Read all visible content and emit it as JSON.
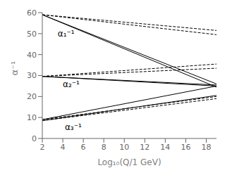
{
  "chart_data": {
    "type": "line",
    "xlabel": "Log₁₀(Q/1 GeV)",
    "ylabel": "α⁻¹",
    "xlim": [
      2,
      19
    ],
    "ylim": [
      0,
      60
    ],
    "xticks": [
      2,
      4,
      6,
      8,
      10,
      12,
      14,
      16,
      18
    ],
    "yticks": [
      0,
      10,
      20,
      30,
      40,
      50,
      60
    ],
    "grid": false,
    "series": [
      {
        "x": [
          2,
          19
        ],
        "values": [
          59.0,
          49.5
        ],
        "color": "black",
        "line_style": "dashed"
      },
      {
        "x": [
          2,
          19
        ],
        "values": [
          59.0,
          51.5
        ],
        "color": "black",
        "line_style": "dashed"
      },
      {
        "x": [
          2,
          19
        ],
        "values": [
          29.6,
          33.5
        ],
        "color": "black",
        "line_style": "dashed"
      },
      {
        "x": [
          2,
          19
        ],
        "values": [
          29.6,
          35.5
        ],
        "color": "black",
        "line_style": "dashed"
      },
      {
        "x": [
          2,
          19
        ],
        "values": [
          9.0,
          20.0
        ],
        "color": "black",
        "line_style": "dashed"
      },
      {
        "x": [
          2,
          19
        ],
        "values": [
          8.5,
          19.0
        ],
        "color": "black",
        "line_style": "dashed"
      },
      {
        "x": [
          2,
          19
        ],
        "values": [
          59.0,
          26.0
        ],
        "color": "black",
        "line_style": "solid"
      },
      {
        "x": [
          2,
          19
        ],
        "values": [
          59.0,
          24.5
        ],
        "color": "black",
        "line_style": "solid"
      },
      {
        "x": [
          2,
          19
        ],
        "values": [
          29.6,
          25.5
        ],
        "color": "black",
        "line_style": "solid"
      },
      {
        "x": [
          2,
          19
        ],
        "values": [
          29.6,
          25.0
        ],
        "color": "black",
        "line_style": "solid"
      },
      {
        "x": [
          2,
          19
        ],
        "values": [
          9.0,
          25.0
        ],
        "color": "black",
        "line_style": "solid"
      },
      {
        "x": [
          2,
          19
        ],
        "values": [
          8.5,
          20.5
        ],
        "color": "black",
        "line_style": "solid"
      }
    ],
    "annotations": [
      {
        "text": "α₁⁻¹",
        "x": 3.5,
        "y": 50.0
      },
      {
        "text": "α₂⁻¹",
        "x": 4.0,
        "y": 26.0
      },
      {
        "text": "α₃⁻¹",
        "x": 4.2,
        "y": 5.5
      }
    ]
  }
}
